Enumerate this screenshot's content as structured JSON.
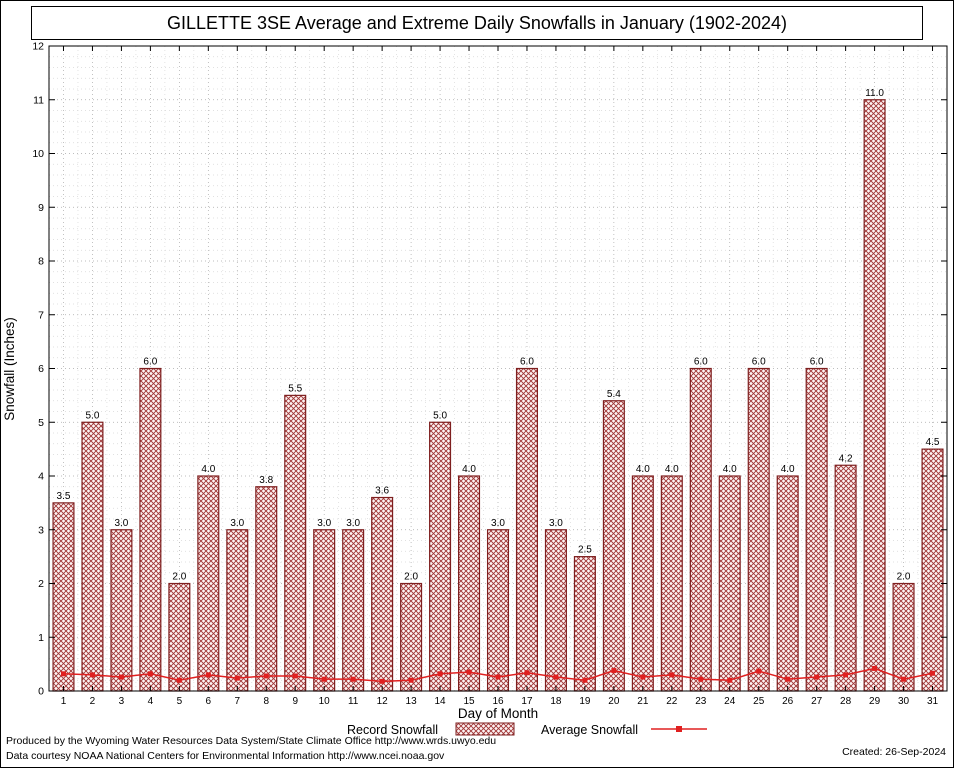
{
  "title": "GILLETTE 3SE Average and Extreme Daily Snowfalls in January (1902-2024)",
  "legend": {
    "record_label": "Record Snowfall",
    "average_label": "Average Snowfall"
  },
  "footer": {
    "line1": "Produced by the Wyoming Water Resources Data System/State Climate Office http://www.wrds.uwyo.edu",
    "line2": "Data courtesy NOAA National Centers for Environmental Information http://www.ncei.noaa.gov",
    "created": "Created: 26-Sep-2024"
  },
  "chart_data": {
    "type": "bar",
    "title": "GILLETTE 3SE Average and Extreme Daily Snowfalls in January (1902-2024)",
    "xlabel": "Day of Month",
    "ylabel": "Snowfall (Inches)",
    "ylim": [
      0,
      12
    ],
    "y_major_ticks": [
      0,
      1,
      2,
      3,
      4,
      5,
      6,
      7,
      8,
      9,
      10,
      11,
      12
    ],
    "grid": true,
    "legend_position": "bottom",
    "categories": [
      1,
      2,
      3,
      4,
      5,
      6,
      7,
      8,
      9,
      10,
      11,
      12,
      13,
      14,
      15,
      16,
      17,
      18,
      19,
      20,
      21,
      22,
      23,
      24,
      25,
      26,
      27,
      28,
      29,
      30,
      31
    ],
    "series": [
      {
        "name": "Record Snowfall",
        "type": "bar",
        "values": [
          3.5,
          5.0,
          3.0,
          6.0,
          2.0,
          4.0,
          3.0,
          3.8,
          5.5,
          3.0,
          3.0,
          3.6,
          2.0,
          5.0,
          4.0,
          3.0,
          6.0,
          3.0,
          2.5,
          5.4,
          4.0,
          4.0,
          6.0,
          4.0,
          6.0,
          4.0,
          6.0,
          4.2,
          11.0,
          2.0,
          4.5
        ]
      },
      {
        "name": "Average Snowfall",
        "type": "line",
        "values": [
          0.32,
          0.3,
          0.26,
          0.32,
          0.2,
          0.3,
          0.24,
          0.28,
          0.28,
          0.22,
          0.22,
          0.18,
          0.2,
          0.32,
          0.35,
          0.26,
          0.34,
          0.26,
          0.2,
          0.38,
          0.26,
          0.3,
          0.22,
          0.2,
          0.37,
          0.22,
          0.26,
          0.3,
          0.42,
          0.22,
          0.33
        ]
      }
    ],
    "colors": {
      "bar_outline": "#7e1f1f",
      "bar_hatch": "#a03535",
      "bar_fill_bg": "#fdf4f4",
      "average_line": "#e02020",
      "grid_major": "#a8a8a8",
      "grid_minor": "#d8d8d8",
      "axis": "#000000"
    }
  }
}
